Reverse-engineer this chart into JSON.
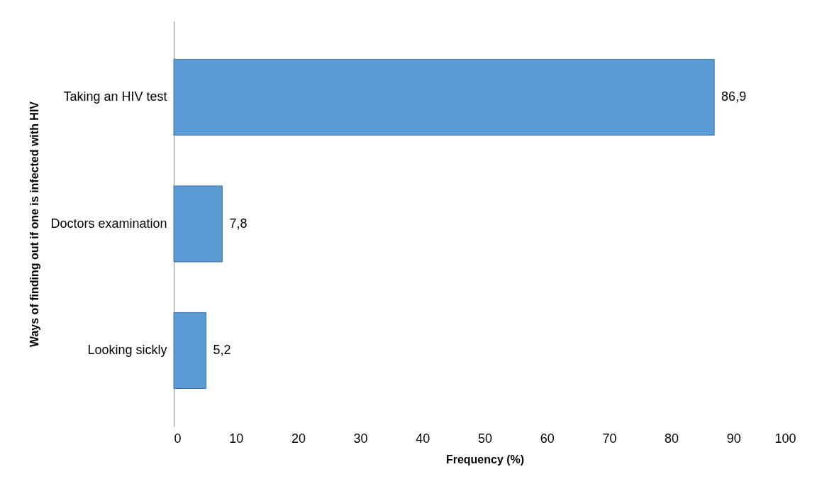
{
  "chart_data": {
    "type": "bar",
    "orientation": "horizontal",
    "categories": [
      "Taking an HIV test",
      "Doctors examination",
      "Looking sickly"
    ],
    "values": [
      86.9,
      7.8,
      5.2
    ],
    "value_labels": [
      "86,9",
      "7,8",
      "5,2"
    ],
    "color": "#5b9bd5",
    "xlabel": "Frequency (%)",
    "ylabel": "Ways of finding out if one is infected with HIV",
    "xlim": [
      0,
      100
    ],
    "xticks": [
      0,
      10,
      20,
      30,
      40,
      50,
      60,
      70,
      80,
      90,
      100
    ],
    "grid": false
  }
}
